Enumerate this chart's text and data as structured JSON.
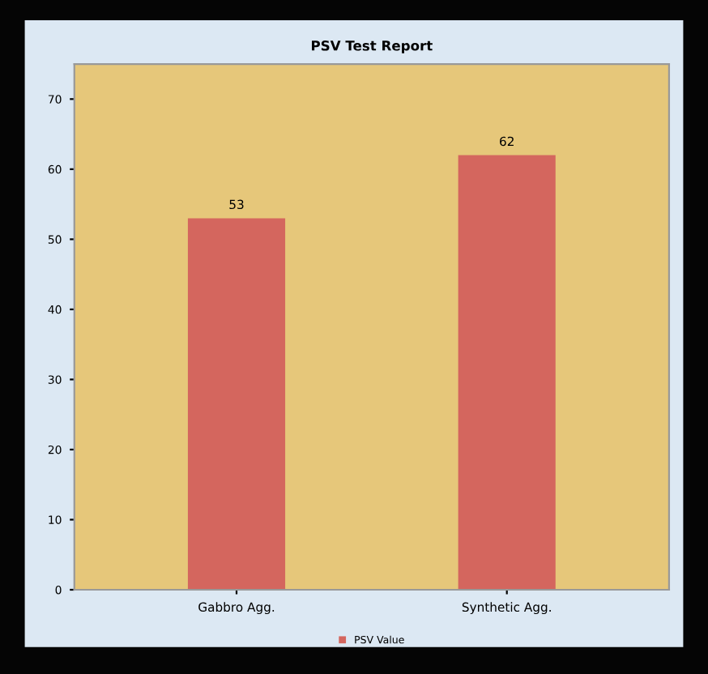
{
  "chart_data": {
    "type": "bar",
    "title": "PSV Test Report",
    "categories": [
      "Gabbro Agg.",
      "Synthetic Agg."
    ],
    "series": [
      {
        "name": "PSV Value",
        "color": "#d4665e",
        "values": [
          53,
          62
        ]
      }
    ],
    "ylim": [
      0,
      75
    ],
    "yticks": [
      0,
      10,
      20,
      30,
      40,
      50,
      60,
      70
    ],
    "data_labels": true,
    "legend": "bottom",
    "grid": false
  }
}
